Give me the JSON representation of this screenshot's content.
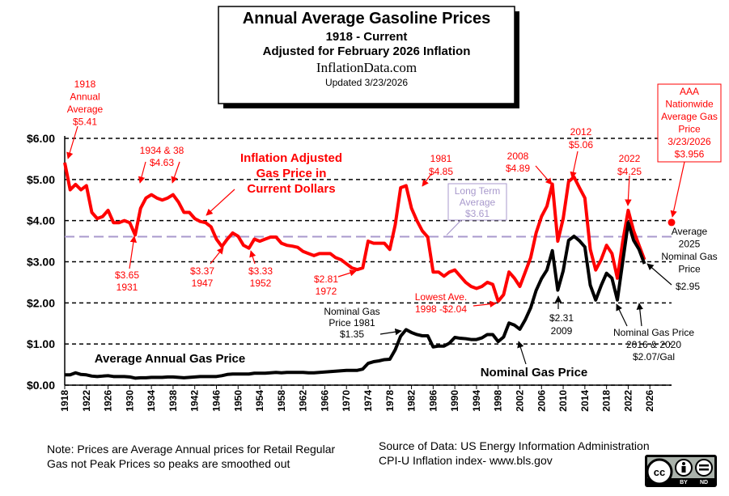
{
  "chart_data": {
    "type": "line",
    "title": "Annual Average Gasoline Prices",
    "subtitles": [
      "1918 - Current",
      "Adjusted for February 2026 Inflation"
    ],
    "site": "InflationData.com",
    "updated": "Updated  3/23/2026",
    "x": [
      1918,
      1919,
      1920,
      1921,
      1922,
      1923,
      1924,
      1925,
      1926,
      1927,
      1928,
      1929,
      1930,
      1931,
      1932,
      1933,
      1934,
      1935,
      1936,
      1937,
      1938,
      1939,
      1940,
      1941,
      1942,
      1943,
      1944,
      1945,
      1946,
      1947,
      1948,
      1949,
      1950,
      1951,
      1952,
      1953,
      1954,
      1955,
      1956,
      1957,
      1958,
      1959,
      1960,
      1961,
      1962,
      1963,
      1964,
      1965,
      1966,
      1967,
      1968,
      1969,
      1970,
      1971,
      1972,
      1973,
      1974,
      1975,
      1976,
      1977,
      1978,
      1979,
      1980,
      1981,
      1982,
      1983,
      1984,
      1985,
      1986,
      1987,
      1988,
      1989,
      1990,
      1991,
      1992,
      1993,
      1994,
      1995,
      1996,
      1997,
      1998,
      1999,
      2000,
      2001,
      2002,
      2003,
      2004,
      2005,
      2006,
      2007,
      2008,
      2009,
      2010,
      2011,
      2012,
      2013,
      2014,
      2015,
      2016,
      2017,
      2018,
      2019,
      2020,
      2021,
      2022,
      2023,
      2024,
      2025
    ],
    "series": [
      {
        "color": "#ff0000",
        "values": [
          5.41,
          4.75,
          4.88,
          4.75,
          4.85,
          4.2,
          4.05,
          4.1,
          4.25,
          3.95,
          3.95,
          4.0,
          3.95,
          3.65,
          4.3,
          4.55,
          4.63,
          4.55,
          4.5,
          4.55,
          4.63,
          4.45,
          4.2,
          4.2,
          4.05,
          3.98,
          3.95,
          3.85,
          3.55,
          3.37,
          3.55,
          3.7,
          3.62,
          3.4,
          3.33,
          3.55,
          3.5,
          3.55,
          3.6,
          3.6,
          3.45,
          3.4,
          3.38,
          3.35,
          3.25,
          3.2,
          3.15,
          3.2,
          3.2,
          3.2,
          3.1,
          3.05,
          2.95,
          2.85,
          2.81,
          2.85,
          3.5,
          3.45,
          3.45,
          3.45,
          3.3,
          3.9,
          4.8,
          4.85,
          4.3,
          4.0,
          3.75,
          3.6,
          2.75,
          2.75,
          2.65,
          2.75,
          2.8,
          2.65,
          2.5,
          2.4,
          2.35,
          2.4,
          2.5,
          2.45,
          2.04,
          2.2,
          2.75,
          2.6,
          2.4,
          2.75,
          3.1,
          3.7,
          4.1,
          4.35,
          4.89,
          3.5,
          4.05,
          4.95,
          5.06,
          4.8,
          4.55,
          3.3,
          2.8,
          3.05,
          3.4,
          3.2,
          2.6,
          3.5,
          4.25,
          3.75,
          3.4,
          3.05
        ]
      },
      {
        "color": "#000000",
        "values": [
          0.25,
          0.25,
          0.3,
          0.26,
          0.25,
          0.22,
          0.21,
          0.22,
          0.23,
          0.21,
          0.21,
          0.21,
          0.2,
          0.17,
          0.18,
          0.18,
          0.19,
          0.19,
          0.19,
          0.2,
          0.2,
          0.19,
          0.18,
          0.19,
          0.2,
          0.21,
          0.21,
          0.21,
          0.21,
          0.23,
          0.26,
          0.27,
          0.27,
          0.27,
          0.27,
          0.29,
          0.29,
          0.29,
          0.3,
          0.31,
          0.3,
          0.31,
          0.31,
          0.31,
          0.31,
          0.3,
          0.3,
          0.31,
          0.32,
          0.33,
          0.34,
          0.35,
          0.36,
          0.36,
          0.36,
          0.39,
          0.53,
          0.57,
          0.59,
          0.62,
          0.63,
          0.86,
          1.19,
          1.35,
          1.28,
          1.23,
          1.2,
          1.2,
          0.93,
          0.95,
          0.95,
          1.02,
          1.16,
          1.14,
          1.13,
          1.11,
          1.11,
          1.15,
          1.23,
          1.23,
          1.06,
          1.17,
          1.51,
          1.46,
          1.36,
          1.59,
          1.88,
          2.3,
          2.59,
          2.8,
          3.27,
          2.31,
          2.78,
          3.52,
          3.62,
          3.51,
          3.36,
          2.43,
          2.07,
          2.42,
          2.72,
          2.6,
          2.07,
          3.01,
          3.95,
          3.52,
          3.3,
          2.95
        ]
      }
    ],
    "long_term_average": {
      "value": 3.61,
      "color": "#a899cc",
      "lines": [
        "Long Term",
        "Average",
        "$3.61"
      ]
    },
    "aaa_point": {
      "x": 2030,
      "value": 3.956,
      "color": "#ff0000",
      "lines": [
        "AAA",
        "Nationwide",
        "Average  Gas",
        "Price",
        "3/23/2026",
        "$3.956"
      ]
    },
    "xlim": [
      1918,
      2030
    ],
    "xticks": [
      1918,
      1922,
      1926,
      1930,
      1934,
      1938,
      1942,
      1946,
      1950,
      1954,
      1958,
      1962,
      1966,
      1970,
      1974,
      1978,
      1982,
      1986,
      1990,
      1994,
      1998,
      2002,
      2006,
      2010,
      2014,
      2018,
      2022,
      2026
    ],
    "ylim": [
      0,
      6
    ],
    "yticks": [
      {
        "value": 0,
        "label": "$0.00"
      },
      {
        "value": 1,
        "label": "$1.00"
      },
      {
        "value": 2,
        "label": "$2.00"
      },
      {
        "value": 3,
        "label": "$3.00"
      },
      {
        "value": 4,
        "label": "$4.00"
      },
      {
        "value": 5,
        "label": "$5.00"
      },
      {
        "value": 6,
        "label": "$6.00"
      }
    ],
    "grid": true,
    "annotations": [
      [
        "1918",
        "Annual",
        "Average",
        "$5.41"
      ],
      [
        "1934 & 38",
        "$4.63"
      ],
      [
        "Inflation Adjusted",
        "Gas Price in",
        "Current Dollars"
      ],
      [
        "$3.65",
        "1931"
      ],
      [
        "$3.37",
        "1947"
      ],
      [
        "$3.33",
        "1952"
      ],
      [
        "$2.81",
        "1972"
      ],
      [
        "1981",
        "$4.85"
      ],
      [
        "2008",
        "$4.89"
      ],
      [
        "2012",
        "$5.06"
      ],
      [
        "2022",
        "$4.25"
      ],
      [
        "Lowest  Ave.",
        "1998 -$2.04"
      ],
      [
        "Nominal Gas",
        "Price  1981",
        "$1.35"
      ],
      [
        "Average Annual Gas Price"
      ],
      [
        "Nominal Gas Price"
      ],
      [
        "$2.31",
        "2009"
      ],
      [
        "Nominal  Gas Price",
        "2016 & 2020",
        "$2.07/Gal"
      ],
      [
        "Average",
        "2025",
        "Nominal  Gas",
        "Price"
      ],
      [
        "$2.95"
      ]
    ],
    "note": [
      "Note: Prices are Average  Annual prices for Retail Regular",
      "Gas not Peak Prices so peaks are smoothed out"
    ],
    "source": [
      "Source of Data:  US Energy Information Administration",
      "CPI-U Inflation index-    www.bls.gov"
    ],
    "license": [
      "BY",
      "ND"
    ]
  }
}
